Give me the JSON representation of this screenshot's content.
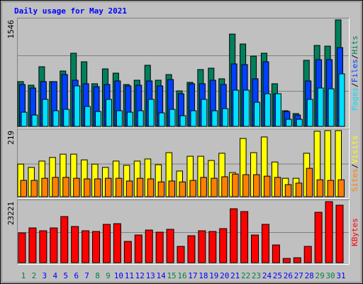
{
  "title": "Daily usage for May 2021",
  "legend_separator": "/",
  "chart_data": [
    {
      "type": "bar",
      "categories": [
        "1",
        "2",
        "3",
        "4",
        "5",
        "6",
        "7",
        "8",
        "9",
        "10",
        "11",
        "12",
        "13",
        "14",
        "15",
        "16",
        "17",
        "18",
        "19",
        "20",
        "21",
        "22",
        "23",
        "24",
        "25",
        "26",
        "27",
        "28",
        "29",
        "30",
        "31"
      ],
      "category_colors": [
        "#008040",
        "#008040",
        "#0000ff",
        "#0000ff",
        "#0000ff",
        "#0000ff",
        "#0000ff",
        "#008040",
        "#008040",
        "#0000ff",
        "#0000ff",
        "#0000ff",
        "#0000ff",
        "#0000ff",
        "#008040",
        "#008040",
        "#0000ff",
        "#0000ff",
        "#0000ff",
        "#0000ff",
        "#0000ff",
        "#008040",
        "#008040",
        "#0000ff",
        "#0000ff",
        "#0000ff",
        "#0000ff",
        "#0000ff",
        "#008040",
        "#008040",
        "#0000ff"
      ],
      "ylim": [
        0,
        1546
      ],
      "yticks": [
        1546
      ],
      "series": [
        {
          "name": "Hits",
          "color": "#00805c",
          "values": [
            650,
            598,
            866,
            650,
            804,
            1062,
            938,
            619,
            835,
            773,
            608,
            670,
            887,
            670,
            752,
            515,
            639,
            825,
            845,
            691,
            1340,
            1196,
            1020,
            1062,
            619,
            227,
            186,
            959,
            1175,
            1165,
            1546
          ]
        },
        {
          "name": "Files",
          "color": "#0040ff",
          "values": [
            608,
            557,
            650,
            650,
            753,
            670,
            619,
            577,
            608,
            660,
            588,
            598,
            660,
            588,
            680,
            474,
            619,
            619,
            670,
            608,
            907,
            897,
            691,
            938,
            474,
            216,
            165,
            660,
            969,
            969,
            1144
          ]
        },
        {
          "name": "Pages",
          "color": "#00e0ff",
          "values": [
            206,
            165,
            392,
            227,
            247,
            588,
            289,
            216,
            392,
            227,
            206,
            227,
            392,
            196,
            247,
            155,
            227,
            392,
            227,
            258,
            526,
            526,
            350,
            474,
            474,
            103,
            103,
            392,
            557,
            546,
            763
          ]
        }
      ]
    },
    {
      "type": "bar",
      "ylim": [
        0,
        219
      ],
      "yticks": [
        219
      ],
      "series": [
        {
          "name": "Visits",
          "color": "#ffff00",
          "values": [
            108,
            97,
            118,
            130,
            141,
            141,
            122,
            108,
            97,
            118,
            104,
            118,
            125,
            106,
            146,
            85,
            134,
            134,
            120,
            144,
            80,
            193,
            146,
            198,
            115,
            61,
            61,
            144,
            217,
            219,
            219
          ]
        },
        {
          "name": "Sites",
          "color": "#ff8000",
          "values": [
            54,
            54,
            61,
            64,
            64,
            61,
            59,
            59,
            61,
            61,
            52,
            61,
            59,
            49,
            52,
            49,
            54,
            64,
            61,
            66,
            75,
            73,
            73,
            68,
            64,
            40,
            45,
            94,
            56,
            54,
            56
          ]
        }
      ]
    },
    {
      "type": "bar",
      "ylim": [
        0,
        23221
      ],
      "yticks": [
        23221
      ],
      "series": [
        {
          "name": "KBytes",
          "color": "#ff0000",
          "values": [
            11340,
            13230,
            12150,
            13230,
            17550,
            13770,
            12150,
            11880,
            14580,
            14850,
            8100,
            10530,
            12420,
            11610,
            12690,
            6210,
            10260,
            12150,
            11880,
            12960,
            20520,
            19440,
            10530,
            14580,
            6750,
            1620,
            1890,
            6210,
            19170,
            23221,
            21870
          ]
        }
      ]
    }
  ]
}
